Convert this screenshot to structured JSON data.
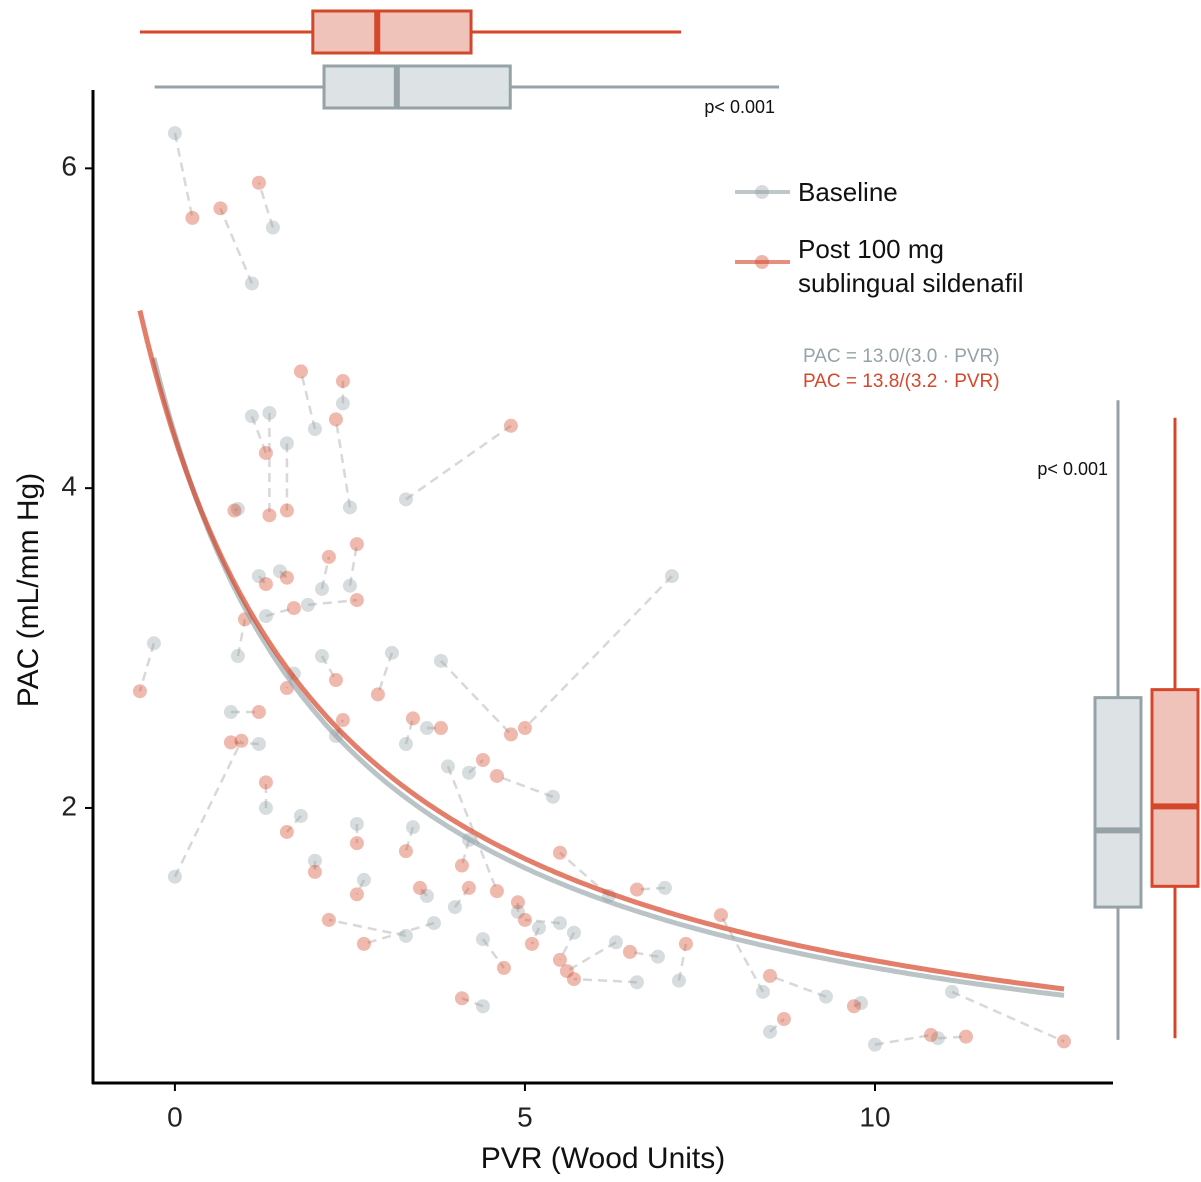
{
  "chart_data": {
    "type": "scatter",
    "xlabel": "PVR (Wood Units)",
    "ylabel": "PAC (mL/mm Hg)",
    "xlim": [
      -1.17,
      13.4
    ],
    "ylim": [
      0.28,
      6.49
    ],
    "xticks": [
      0,
      5,
      10
    ],
    "yticks": [
      2,
      4,
      6
    ],
    "series": [
      {
        "name": "Baseline",
        "color": "#95a3a8",
        "x": [
          -0.3,
          0,
          0,
          1.1,
          1.4,
          1.1,
          1.35,
          2.0,
          2.4,
          3.3,
          2.5,
          7.1,
          3.8,
          1.6,
          0.9,
          1.2,
          1.5,
          2.1,
          2.5,
          1.9,
          1.3,
          0.9,
          3.1,
          1.7,
          0.8,
          1.2,
          2.3,
          3.3,
          3.6,
          4.2,
          5.4,
          1.3,
          1.8,
          2.6,
          3.4,
          4.2,
          2.0,
          2.7,
          3.6,
          4.0,
          4.9,
          5.5,
          3.3,
          3.7,
          4.4,
          5.2,
          5.7,
          6.3,
          7.0,
          6.2,
          6.9,
          7.2,
          8.4,
          9.3,
          8.5,
          9.8,
          10.0,
          10.9,
          11.1,
          4.4,
          6.6,
          2.1,
          3.9
        ],
        "values": [
          3.03,
          1.57,
          6.22,
          5.28,
          5.63,
          4.45,
          4.47,
          4.37,
          4.53,
          3.93,
          3.88,
          3.45,
          2.92,
          4.28,
          3.87,
          3.45,
          3.48,
          3.37,
          3.39,
          3.27,
          3.2,
          2.95,
          2.97,
          2.84,
          2.6,
          2.4,
          2.45,
          2.4,
          2.5,
          2.22,
          2.07,
          2.0,
          1.95,
          1.9,
          1.88,
          1.8,
          1.67,
          1.55,
          1.45,
          1.38,
          1.35,
          1.28,
          1.2,
          1.28,
          1.18,
          1.25,
          1.22,
          1.16,
          1.5,
          1.45,
          1.07,
          0.92,
          0.85,
          0.82,
          0.6,
          0.78,
          0.52,
          0.56,
          0.85,
          0.76,
          0.91,
          2.95,
          2.26
        ]
      },
      {
        "name": "Post 100 mg\nsublingual sildenafil",
        "color": "#d5472b",
        "x": [
          -0.5,
          0.95,
          0.25,
          0.65,
          1.2,
          1.3,
          1.35,
          1.8,
          2.4,
          4.8,
          2.3,
          5.0,
          4.8,
          1.6,
          0.85,
          1.3,
          1.6,
          2.2,
          2.6,
          2.6,
          1.7,
          1.0,
          2.9,
          1.6,
          1.2,
          0.8,
          2.4,
          3.4,
          3.8,
          4.4,
          4.6,
          1.3,
          1.6,
          2.6,
          3.3,
          4.1,
          2.0,
          2.6,
          3.5,
          4.2,
          4.9,
          5.0,
          2.2,
          2.7,
          4.7,
          5.1,
          5.5,
          5.6,
          6.6,
          5.5,
          6.5,
          7.3,
          7.8,
          8.5,
          8.7,
          9.7,
          10.8,
          11.3,
          12.7,
          4.1,
          5.7,
          2.3,
          4.6
        ],
        "values": [
          2.73,
          2.42,
          5.69,
          5.75,
          5.91,
          4.22,
          3.83,
          4.73,
          4.67,
          4.39,
          4.43,
          2.5,
          2.46,
          3.86,
          3.86,
          3.4,
          3.44,
          3.57,
          3.65,
          3.3,
          3.25,
          3.18,
          2.71,
          2.75,
          2.6,
          2.41,
          2.55,
          2.56,
          2.5,
          2.3,
          2.2,
          2.16,
          1.85,
          1.78,
          1.73,
          1.64,
          1.6,
          1.46,
          1.5,
          1.5,
          1.41,
          1.3,
          1.3,
          1.15,
          1.0,
          1.15,
          1.05,
          0.98,
          1.49,
          1.72,
          1.1,
          1.15,
          1.33,
          0.95,
          0.68,
          0.76,
          0.58,
          0.57,
          0.54,
          0.81,
          0.93,
          2.8,
          1.48
        ]
      }
    ],
    "fits": [
      {
        "label": "PAC = 13.0/(3.0 · PVR)",
        "color": "#95a3a8",
        "a": 13.0,
        "b": 3.0,
        "x_range": [
          -0.3,
          12.7
        ]
      },
      {
        "label": "PAC = 13.8/(3.2 · PVR)",
        "color": "#d5472b",
        "a": 13.8,
        "b": 3.2,
        "x_range": [
          -0.5,
          12.7
        ]
      }
    ],
    "x_boxplots": [
      {
        "min": -0.29,
        "q1": 2.13,
        "median": 3.17,
        "q3": 4.79,
        "max": 8.63
      },
      {
        "min": -0.5,
        "q1": 1.97,
        "median": 2.89,
        "q3": 4.23,
        "max": 7.23
      }
    ],
    "x_box_p": "p< 0.001",
    "y_boxplots": [
      {
        "min": 0.55,
        "q1": 1.38,
        "median": 1.86,
        "q3": 2.69,
        "max": 4.55
      },
      {
        "min": 0.56,
        "q1": 1.51,
        "median": 2.01,
        "q3": 2.74,
        "max": 4.44
      }
    ],
    "y_box_p": "p< 0.001"
  }
}
